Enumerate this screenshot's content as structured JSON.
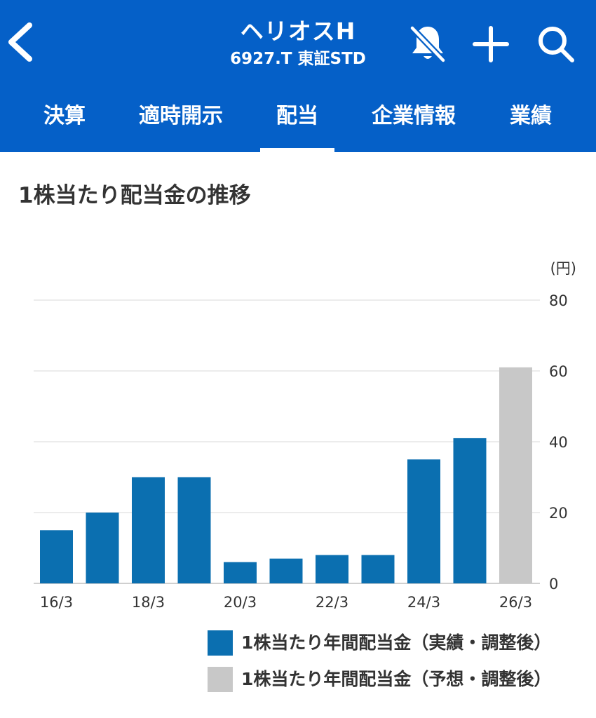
{
  "header": {
    "title": "ヘリオスH",
    "subtitle": "6927.T 東証STD",
    "icons": [
      "chevron-left-icon",
      "bell-off-icon",
      "plus-icon",
      "search-icon"
    ]
  },
  "tabs": [
    {
      "label": "決算"
    },
    {
      "label": "適時開示"
    },
    {
      "label": "配当",
      "active": true
    },
    {
      "label": "企業情報"
    },
    {
      "label": "業績"
    }
  ],
  "section": {
    "title": "1株当たり配当金の推移"
  },
  "colors": {
    "header": "#0560c8",
    "actual": "#0b6fb0",
    "forecast": "#c8c8c8"
  },
  "chart_data": {
    "type": "bar",
    "ylabel": "(円)",
    "ylim": [
      0,
      80
    ],
    "y_ticks": [
      0,
      20,
      40,
      60,
      80
    ],
    "categories": [
      "16/3",
      "17/3",
      "18/3",
      "19/3",
      "20/3",
      "21/3",
      "22/3",
      "23/3",
      "24/3",
      "25/3",
      "26/3"
    ],
    "x_tick_labels": [
      "16/3",
      "18/3",
      "20/3",
      "22/3",
      "24/3",
      "26/3"
    ],
    "series": [
      {
        "name": "1株当たり年間配当金（実績・調整後）",
        "values": [
          15,
          20,
          30,
          30,
          6,
          7,
          8,
          8,
          35,
          41,
          null
        ]
      },
      {
        "name": "1株当たり年間配当金（予想・調整後）",
        "values": [
          null,
          null,
          null,
          null,
          null,
          null,
          null,
          null,
          null,
          null,
          61
        ]
      }
    ],
    "grid": true,
    "legend_position": "bottom-right"
  }
}
